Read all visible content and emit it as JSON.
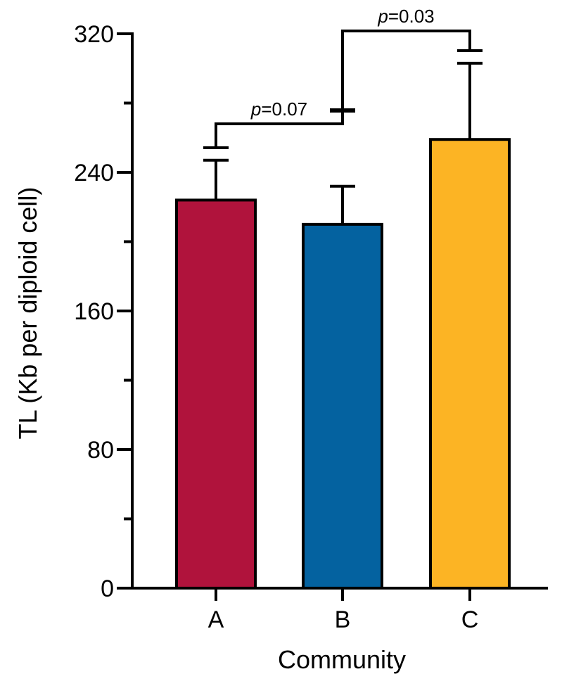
{
  "chart_data": {
    "type": "bar",
    "categories": [
      "A",
      "B",
      "C"
    ],
    "values": [
      224,
      210,
      259
    ],
    "errors": [
      23,
      22,
      44
    ],
    "colors": [
      "#B0133C",
      "#0462A0",
      "#FCB424"
    ],
    "ylim": [
      0,
      320
    ],
    "yticks": [
      0,
      80,
      160,
      240,
      320
    ],
    "yminor_ticks": [
      40,
      120,
      200,
      280
    ],
    "xlabel": "Community",
    "ylabel": "TL (Kb per diploid cell)",
    "grid": false,
    "legend": "none",
    "comparisons": [
      {
        "from": "A",
        "to": "B",
        "p_label": "p",
        "p_value": "=0.07"
      },
      {
        "from": "B",
        "to": "C",
        "p_label": "p",
        "p_value": "=0.03"
      }
    ]
  }
}
